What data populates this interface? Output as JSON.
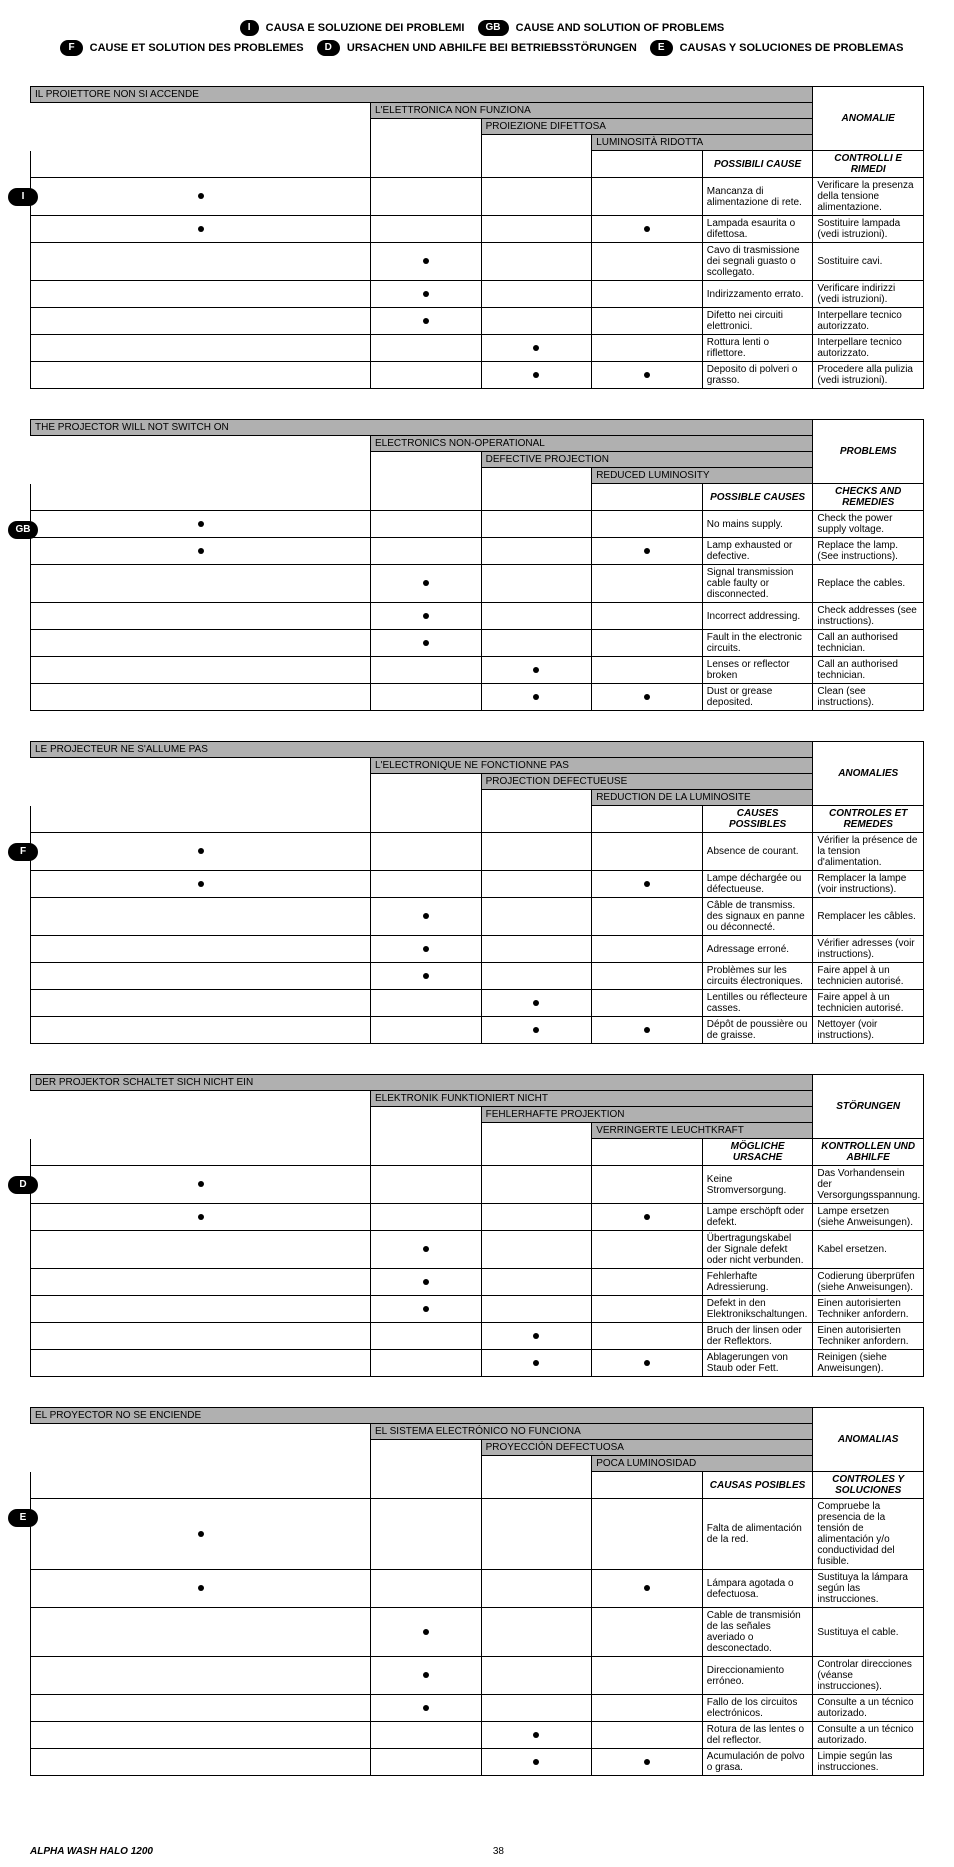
{
  "header": {
    "line1": [
      {
        "badge": "I",
        "text": "CAUSA E SOLUZIONE DEI PROBLEMI"
      },
      {
        "badge": "GB",
        "text": "CAUSE AND SOLUTION OF PROBLEMS"
      }
    ],
    "line2": [
      {
        "badge": "F",
        "text": "CAUSE ET SOLUTION DES PROBLEMES"
      },
      {
        "badge": "D",
        "text": "URSACHEN UND ABHILFE BEI BETRIEBSSTÖRUNGEN"
      },
      {
        "badge": "E",
        "text": "CAUSAS Y SOLUCIONES DE PROBLEMAS"
      }
    ]
  },
  "tables": [
    {
      "lang": "I",
      "symptoms": [
        "IL PROIETTORE NON SI ACCENDE",
        "L'ELETTRONICA NON FUNZIONA",
        "PROIEZIONE DIFETTOSA",
        "LUMINOSITÀ RIDOTTA"
      ],
      "anom": "ANOMALIE",
      "causes_hdr": "POSSIBILI CAUSE",
      "checks_hdr": "CONTROLLI E RIMEDI",
      "rows": [
        {
          "d": [
            1,
            0,
            0,
            0
          ],
          "cause": "Mancanza di alimentazione di rete.",
          "check": "Verificare la presenza della tensione alimentazione."
        },
        {
          "d": [
            1,
            0,
            0,
            1
          ],
          "cause": "Lampada esaurita o difettosa.",
          "check": "Sostituire lampada (vedi istruzioni)."
        },
        {
          "d": [
            0,
            1,
            0,
            0
          ],
          "cause": "Cavo di trasmissione dei segnali guasto o scollegato.",
          "check": "Sostituire cavi."
        },
        {
          "d": [
            0,
            1,
            0,
            0
          ],
          "cause": "Indirizzamento errato.",
          "check": "Verificare indirizzi (vedi istruzioni)."
        },
        {
          "d": [
            0,
            1,
            0,
            0
          ],
          "cause": "Difetto nei circuiti elettronici.",
          "check": "Interpellare tecnico autorizzato."
        },
        {
          "d": [
            0,
            0,
            1,
            0
          ],
          "cause": "Rottura lenti o riflettore.",
          "check": "Interpellare tecnico autorizzato."
        },
        {
          "d": [
            0,
            0,
            1,
            1
          ],
          "cause": "Deposito di polveri o grasso.",
          "check": "Procedere alla pulizia (vedi istruzioni)."
        }
      ]
    },
    {
      "lang": "GB",
      "symptoms": [
        "THE PROJECTOR WILL NOT SWITCH ON",
        "ELECTRONICS NON-OPERATIONAL",
        "DEFECTIVE PROJECTION",
        "REDUCED LUMINOSITY"
      ],
      "anom": "PROBLEMS",
      "causes_hdr": "POSSIBLE CAUSES",
      "checks_hdr": "CHECKS AND REMEDIES",
      "rows": [
        {
          "d": [
            1,
            0,
            0,
            0
          ],
          "cause": "No mains supply.",
          "check": "Check the power supply voltage."
        },
        {
          "d": [
            1,
            0,
            0,
            1
          ],
          "cause": "Lamp exhausted or defective.",
          "check": "Replace the lamp. (See instructions)."
        },
        {
          "d": [
            0,
            1,
            0,
            0
          ],
          "cause": "Signal transmission cable faulty or disconnected.",
          "check": "Replace the cables."
        },
        {
          "d": [
            0,
            1,
            0,
            0
          ],
          "cause": "Incorrect addressing.",
          "check": "Check addresses (see instructions)."
        },
        {
          "d": [
            0,
            1,
            0,
            0
          ],
          "cause": "Fault in the electronic circuits.",
          "check": "Call an authorised technician."
        },
        {
          "d": [
            0,
            0,
            1,
            0
          ],
          "cause": "Lenses or reflector broken",
          "check": "Call an authorised technician."
        },
        {
          "d": [
            0,
            0,
            1,
            1
          ],
          "cause": "Dust or grease deposited.",
          "check": "Clean (see instructions)."
        }
      ]
    },
    {
      "lang": "F",
      "symptoms": [
        "LE PROJECTEUR NE S'ALLUME PAS",
        "L'ELECTRONIQUE NE FONCTIONNE PAS",
        "PROJECTION DEFECTUEUSE",
        "REDUCTION DE LA LUMINOSITE"
      ],
      "anom": "ANOMALIES",
      "causes_hdr": "CAUSES POSSIBLES",
      "checks_hdr": "CONTROLES ET REMEDES",
      "rows": [
        {
          "d": [
            1,
            0,
            0,
            0
          ],
          "cause": "Absence de courant.",
          "check": "Vérifier la présence de la tension d'alimentation."
        },
        {
          "d": [
            1,
            0,
            0,
            1
          ],
          "cause": "Lampe déchargée ou défectueuse.",
          "check": "Remplacer la lampe (voir instructions)."
        },
        {
          "d": [
            0,
            1,
            0,
            0
          ],
          "cause": "Câble de transmiss. des signaux en panne ou déconnecté.",
          "check": "Remplacer les câbles."
        },
        {
          "d": [
            0,
            1,
            0,
            0
          ],
          "cause": "Adressage erroné.",
          "check": "Vérifier adresses (voir instructions)."
        },
        {
          "d": [
            0,
            1,
            0,
            0
          ],
          "cause": "Problèmes sur les circuits électroniques.",
          "check": "Faire appel à un technicien autorisé."
        },
        {
          "d": [
            0,
            0,
            1,
            0
          ],
          "cause": "Lentilles ou réflecteure casses.",
          "check": "Faire appel à un technicien autorisé."
        },
        {
          "d": [
            0,
            0,
            1,
            1
          ],
          "cause": "Dépôt de poussière ou de graisse.",
          "check": "Nettoyer (voir instructions)."
        }
      ]
    },
    {
      "lang": "D",
      "symptoms": [
        "DER PROJEKTOR SCHALTET SICH NICHT EIN",
        "ELEKTRONIK FUNKTIONIERT NICHT",
        "FEHLERHAFTE PROJEKTION",
        "VERRINGERTE LEUCHTKRAFT"
      ],
      "anom": "STÖRUNGEN",
      "causes_hdr": "MÖGLICHE URSACHE",
      "checks_hdr": "KONTROLLEN UND ABHILFE",
      "rows": [
        {
          "d": [
            1,
            0,
            0,
            0
          ],
          "cause": "Keine Stromversorgung.",
          "check": "Das Vorhandensein der Versorgungsspannung."
        },
        {
          "d": [
            1,
            0,
            0,
            1
          ],
          "cause": "Lampe erschöpft oder defekt.",
          "check": "Lampe ersetzen (siehe Anweisungen)."
        },
        {
          "d": [
            0,
            1,
            0,
            0
          ],
          "cause": "Übertragungskabel der Signale defekt oder nicht verbunden.",
          "check": "Kabel ersetzen."
        },
        {
          "d": [
            0,
            1,
            0,
            0
          ],
          "cause": "Fehlerhafte Adressierung.",
          "check": "Codierung überprüfen (siehe Anweisungen)."
        },
        {
          "d": [
            0,
            1,
            0,
            0
          ],
          "cause": "Defekt in den Elektronikschaltungen.",
          "check": "Einen autorisierten Techniker anfordern."
        },
        {
          "d": [
            0,
            0,
            1,
            0
          ],
          "cause": "Bruch der linsen oder der Reflektors.",
          "check": "Einen autorisierten Techniker anfordern."
        },
        {
          "d": [
            0,
            0,
            1,
            1
          ],
          "cause": "Ablagerungen von Staub oder Fett.",
          "check": "Reinigen (siehe Anweisungen)."
        }
      ]
    },
    {
      "lang": "E",
      "symptoms": [
        "EL PROYECTOR NO SE ENCIENDE",
        "EL SISTEMA ELECTRÓNICO NO FUNCIONA",
        "PROYECCIÓN DEFECTUOSA",
        "POCA LUMINOSIDAD"
      ],
      "anom": "ANOMALIAS",
      "causes_hdr": "CAUSAS POSIBLES",
      "checks_hdr": "CONTROLES Y SOLUCIONES",
      "rows": [
        {
          "d": [
            1,
            0,
            0,
            0
          ],
          "cause": "Falta de alimentación de la red.",
          "check": "Compruebe la presencia de la tensión de alimentación y/o conductividad del fusible."
        },
        {
          "d": [
            1,
            0,
            0,
            1
          ],
          "cause": "Lámpara agotada o defectuosa.",
          "check": "Sustituya la lámpara según las instrucciones."
        },
        {
          "d": [
            0,
            1,
            0,
            0
          ],
          "cause": "Cable de transmisión de las señales averiado o desconectado.",
          "check": "Sustituya el cable."
        },
        {
          "d": [
            0,
            1,
            0,
            0
          ],
          "cause": "Direccionamiento erróneo.",
          "check": "Controlar direcciones (véanse instrucciones)."
        },
        {
          "d": [
            0,
            1,
            0,
            0
          ],
          "cause": "Fallo de los circuitos electrónicos.",
          "check": "Consulte a un técnico autorizado."
        },
        {
          "d": [
            0,
            0,
            1,
            0
          ],
          "cause": "Rotura de las lentes o del reflector.",
          "check": "Consulte a un técnico autorizado."
        },
        {
          "d": [
            0,
            0,
            1,
            1
          ],
          "cause": "Acumulación de polvo o grasa.",
          "check": "Limpie según las instrucciones."
        }
      ]
    }
  ],
  "footer": {
    "model": "ALPHA WASH HALO 1200",
    "page": "38"
  }
}
